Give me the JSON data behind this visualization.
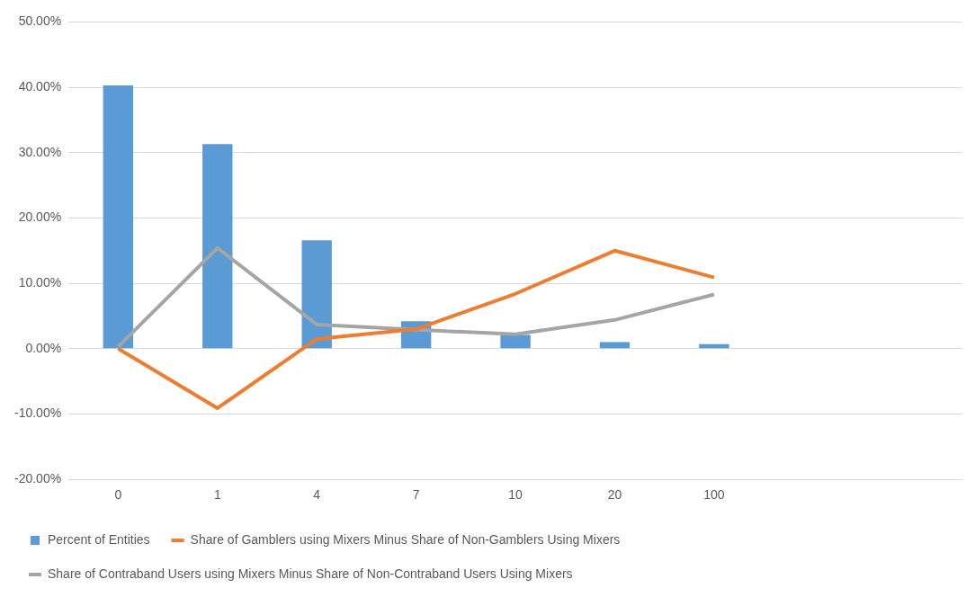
{
  "chart_data": {
    "type": "bar",
    "categories": [
      "0",
      "1",
      "4",
      "7",
      "10",
      "20",
      "100",
      null,
      null
    ],
    "series": [
      {
        "name": "Percent of Entities",
        "color": "#5b9bd5",
        "values": [
          40.3,
          31.3,
          16.6,
          4.2,
          2.1,
          1.0,
          0.7,
          null,
          null
        ]
      },
      {
        "name": "Share of Gamblers using Mixers Minus Share of Non-Gamblers Using Mixers",
        "type": "line",
        "color": "#ed7d31",
        "values": [
          0.0,
          -9.1,
          1.5,
          3.0,
          8.4,
          15.0,
          10.9,
          null,
          null
        ]
      },
      {
        "name": "Share of Contraband Users using Mixers Minus Share of Non-Contraband Users Using Mixers",
        "type": "line",
        "color": "#a5a5a5",
        "values": [
          0.3,
          15.4,
          3.7,
          2.9,
          2.2,
          4.4,
          8.3,
          null,
          null
        ]
      }
    ],
    "ylim": [
      -20,
      50
    ],
    "yticks": [
      {
        "value": -20,
        "label": "-20.00%"
      },
      {
        "value": -10,
        "label": "-10.00%"
      },
      {
        "value": 0,
        "label": "0.00%"
      },
      {
        "value": 10,
        "label": "10.00%"
      },
      {
        "value": 20,
        "label": "20.00%"
      },
      {
        "value": 30,
        "label": "30.00%"
      },
      {
        "value": 40,
        "label": "40.00%"
      },
      {
        "value": 50,
        "label": "50.00%"
      }
    ],
    "grid": "y",
    "legend": "bottom",
    "marker": "none"
  }
}
